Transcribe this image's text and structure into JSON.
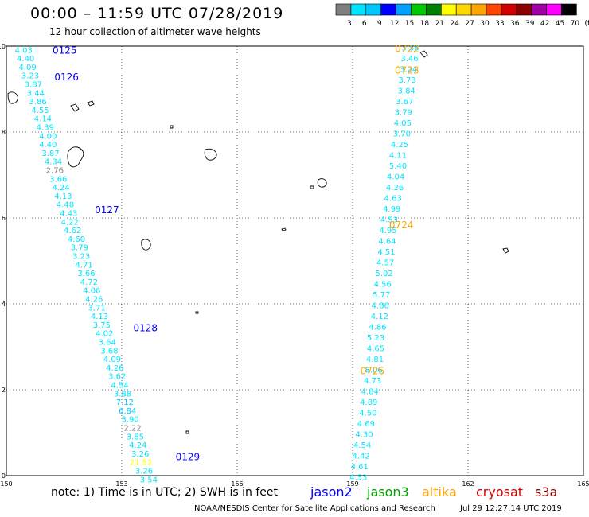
{
  "header": {
    "title": "00:00 – 11:59 UTC 07/28/2019",
    "subtitle": "12 hour collection of altimeter wave heights"
  },
  "color_scale": {
    "labels": [
      "3",
      "6",
      "9",
      "12",
      "15",
      "18",
      "21",
      "24",
      "27",
      "30",
      "33",
      "36",
      "39",
      "42",
      "45",
      "70",
      "(ft)"
    ],
    "colors": [
      "#7f7f7f",
      "#00e5ff",
      "#00c8ff",
      "#0000ff",
      "#00a0ff",
      "#00c800",
      "#008000",
      "#ffff00",
      "#ffd700",
      "#ffa500",
      "#ff4500",
      "#d20000",
      "#8b0000",
      "#a000a0",
      "#ff00ff",
      "#000000"
    ]
  },
  "footer": {
    "note": "note:  1) Time is in UTC;  2) SWH is in feet",
    "credit": "NOAA/NESDIS Center for Satellite Applications and Research",
    "timestamp": "Jul 29 12:27:14 UTC 2019"
  },
  "satellites": [
    {
      "name": "jason2",
      "color": "#0000ff"
    },
    {
      "name": "jason3",
      "color": "#00a000"
    },
    {
      "name": "altika",
      "color": "#ffa500"
    },
    {
      "name": "cryosat",
      "color": "#d20000"
    },
    {
      "name": "s3a",
      "color": "#8b0000"
    }
  ],
  "chart_data": {
    "type": "scatter",
    "title": "00:00 – 11:59 UTC 07/28/2019",
    "xlim": [
      150,
      165
    ],
    "ylim": [
      0,
      10
    ],
    "x_ticks": [
      "150",
      "153",
      "156",
      "159",
      "162",
      "165"
    ],
    "y_ticks": [
      "0",
      "2",
      "4",
      "6",
      "8",
      "10"
    ],
    "grid": true,
    "value_unit": "ft",
    "series": [
      {
        "name": "jason2",
        "color": "#0000ff",
        "time_labels": [
          {
            "label": "0125",
            "lon": 151.2,
            "lat": 9.92
          },
          {
            "label": "0126",
            "lon": 151.25,
            "lat": 9.3
          },
          {
            "label": "0127",
            "lon": 152.3,
            "lat": 6.2
          },
          {
            "label": "0128",
            "lon": 153.3,
            "lat": 3.45
          },
          {
            "label": "0129",
            "lon": 154.4,
            "lat": 0.45
          }
        ],
        "points": [
          {
            "lon": 150.45,
            "lat": 9.92,
            "value": "4.03"
          },
          {
            "lon": 150.5,
            "lat": 9.72,
            "value": "4.40"
          },
          {
            "lon": 150.55,
            "lat": 9.52,
            "value": "4.09"
          },
          {
            "lon": 150.62,
            "lat": 9.32,
            "value": "3.23"
          },
          {
            "lon": 150.7,
            "lat": 9.12,
            "value": "3.87"
          },
          {
            "lon": 150.76,
            "lat": 8.92,
            "value": "3.44"
          },
          {
            "lon": 150.82,
            "lat": 8.72,
            "value": "3.86"
          },
          {
            "lon": 150.88,
            "lat": 8.52,
            "value": "4.55"
          },
          {
            "lon": 150.95,
            "lat": 8.32,
            "value": "4.14"
          },
          {
            "lon": 151.01,
            "lat": 8.12,
            "value": "4.39"
          },
          {
            "lon": 151.08,
            "lat": 7.92,
            "value": "4.00"
          },
          {
            "lon": 151.08,
            "lat": 7.72,
            "value": "4.40"
          },
          {
            "lon": 151.15,
            "lat": 7.52,
            "value": "3.87"
          },
          {
            "lon": 151.22,
            "lat": 7.32,
            "value": "4.34"
          },
          {
            "lon": 151.26,
            "lat": 7.12,
            "value": "2.76"
          },
          {
            "lon": 151.35,
            "lat": 6.92,
            "value": "3.66"
          },
          {
            "lon": 151.42,
            "lat": 6.72,
            "value": "4.24"
          },
          {
            "lon": 151.48,
            "lat": 6.52,
            "value": "4.13"
          },
          {
            "lon": 151.53,
            "lat": 6.32,
            "value": "4.48"
          },
          {
            "lon": 151.62,
            "lat": 6.12,
            "value": "4.43"
          },
          {
            "lon": 151.65,
            "lat": 5.92,
            "value": "4.22"
          },
          {
            "lon": 151.72,
            "lat": 5.72,
            "value": "4.62"
          },
          {
            "lon": 151.82,
            "lat": 5.52,
            "value": "4.60"
          },
          {
            "lon": 151.9,
            "lat": 5.32,
            "value": "3.79"
          },
          {
            "lon": 151.95,
            "lat": 5.12,
            "value": "3.23"
          },
          {
            "lon": 152.02,
            "lat": 4.92,
            "value": "4.71"
          },
          {
            "lon": 152.08,
            "lat": 4.72,
            "value": "3.66"
          },
          {
            "lon": 152.15,
            "lat": 4.52,
            "value": "4.72"
          },
          {
            "lon": 152.22,
            "lat": 4.32,
            "value": "4.06"
          },
          {
            "lon": 152.28,
            "lat": 4.12,
            "value": "4.26"
          },
          {
            "lon": 152.35,
            "lat": 3.92,
            "value": "3.71"
          },
          {
            "lon": 152.42,
            "lat": 3.72,
            "value": "4.13"
          },
          {
            "lon": 152.48,
            "lat": 3.52,
            "value": "3.75"
          },
          {
            "lon": 152.55,
            "lat": 3.32,
            "value": "4.02"
          },
          {
            "lon": 152.62,
            "lat": 3.12,
            "value": "3.64"
          },
          {
            "lon": 152.68,
            "lat": 2.92,
            "value": "3.68"
          },
          {
            "lon": 152.75,
            "lat": 2.72,
            "value": "4.09"
          },
          {
            "lon": 152.82,
            "lat": 2.52,
            "value": "4.26"
          },
          {
            "lon": 152.88,
            "lat": 2.32,
            "value": "3.62"
          },
          {
            "lon": 152.95,
            "lat": 2.12,
            "value": "4.54"
          },
          {
            "lon": 153.02,
            "lat": 1.92,
            "value": "3.88"
          },
          {
            "lon": 153.08,
            "lat": 1.72,
            "value": "7.12"
          },
          {
            "lon": 153.15,
            "lat": 1.52,
            "value": "6.84"
          },
          {
            "lon": 153.22,
            "lat": 1.32,
            "value": "3.90"
          },
          {
            "lon": 153.28,
            "lat": 1.12,
            "value": "2.22"
          },
          {
            "lon": 153.35,
            "lat": 0.92,
            "value": "3.85"
          },
          {
            "lon": 153.42,
            "lat": 0.72,
            "value": "4.24"
          },
          {
            "lon": 153.48,
            "lat": 0.52,
            "value": "3.26"
          },
          {
            "lon": 153.5,
            "lat": 0.32,
            "value": "21.52"
          },
          {
            "lon": 153.58,
            "lat": 0.12,
            "value": "3.26"
          },
          {
            "lon": 153.7,
            "lat": -0.08,
            "value": "3.54"
          }
        ]
      },
      {
        "name": "altika",
        "color": "#ffa500",
        "time_labels": [
          {
            "label": "0722",
            "lon": 160.1,
            "lat": 9.95
          },
          {
            "lon": 160.1,
            "lat": 9.45,
            "label": "0723"
          },
          {
            "label": "0724",
            "lon": 159.95,
            "lat": 5.85
          },
          {
            "label": "0725",
            "lon": 159.2,
            "lat": 2.45
          }
        ],
        "points": [
          {
            "lon": 160.5,
            "lat": 9.97,
            "value": "3.58"
          },
          {
            "lon": 160.48,
            "lat": 9.72,
            "value": "3.46"
          },
          {
            "lon": 160.45,
            "lat": 9.47,
            "value": "3.24"
          },
          {
            "lon": 160.42,
            "lat": 9.22,
            "value": "3.73"
          },
          {
            "lon": 160.4,
            "lat": 8.97,
            "value": "3.84"
          },
          {
            "lon": 160.35,
            "lat": 8.72,
            "value": "3.67"
          },
          {
            "lon": 160.32,
            "lat": 8.47,
            "value": "3.79"
          },
          {
            "lon": 160.3,
            "lat": 8.22,
            "value": "4.05"
          },
          {
            "lon": 160.28,
            "lat": 7.97,
            "value": "3.70"
          },
          {
            "lon": 160.22,
            "lat": 7.72,
            "value": "4.25"
          },
          {
            "lon": 160.18,
            "lat": 7.47,
            "value": "4.11"
          },
          {
            "lon": 160.18,
            "lat": 7.22,
            "value": "5.40"
          },
          {
            "lon": 160.12,
            "lat": 6.97,
            "value": "4.04"
          },
          {
            "lon": 160.1,
            "lat": 6.72,
            "value": "4.26"
          },
          {
            "lon": 160.05,
            "lat": 6.47,
            "value": "4.63"
          },
          {
            "lon": 160.02,
            "lat": 6.22,
            "value": "4.99"
          },
          {
            "lon": 159.95,
            "lat": 5.97,
            "value": "4.53"
          },
          {
            "lon": 159.92,
            "lat": 5.72,
            "value": "4.95"
          },
          {
            "lon": 159.9,
            "lat": 5.47,
            "value": "4.64"
          },
          {
            "lon": 159.88,
            "lat": 5.22,
            "value": "4.51"
          },
          {
            "lon": 159.85,
            "lat": 4.97,
            "value": "4.57"
          },
          {
            "lon": 159.82,
            "lat": 4.72,
            "value": "5.02"
          },
          {
            "lon": 159.78,
            "lat": 4.47,
            "value": "4.56"
          },
          {
            "lon": 159.75,
            "lat": 4.22,
            "value": "5.77"
          },
          {
            "lon": 159.72,
            "lat": 3.97,
            "value": "4.86"
          },
          {
            "lon": 159.7,
            "lat": 3.72,
            "value": "4.12"
          },
          {
            "lon": 159.65,
            "lat": 3.47,
            "value": "4.86"
          },
          {
            "lon": 159.6,
            "lat": 3.22,
            "value": "5.23"
          },
          {
            "lon": 159.6,
            "lat": 2.97,
            "value": "4.65"
          },
          {
            "lon": 159.58,
            "lat": 2.72,
            "value": "4.81"
          },
          {
            "lon": 159.55,
            "lat": 2.47,
            "value": "8.06"
          },
          {
            "lon": 159.52,
            "lat": 2.22,
            "value": "4.73"
          },
          {
            "lon": 159.45,
            "lat": 1.97,
            "value": "4.84"
          },
          {
            "lon": 159.42,
            "lat": 1.72,
            "value": "4.89"
          },
          {
            "lon": 159.4,
            "lat": 1.47,
            "value": "4.50"
          },
          {
            "lon": 159.35,
            "lat": 1.22,
            "value": "4.69"
          },
          {
            "lon": 159.3,
            "lat": 0.97,
            "value": "4.30"
          },
          {
            "lon": 159.25,
            "lat": 0.72,
            "value": "4.54"
          },
          {
            "lon": 159.22,
            "lat": 0.47,
            "value": "4.42"
          },
          {
            "lon": 159.18,
            "lat": 0.22,
            "value": "4.61"
          },
          {
            "lon": 159.15,
            "lat": -0.03,
            "value": "4.53"
          }
        ]
      }
    ]
  }
}
